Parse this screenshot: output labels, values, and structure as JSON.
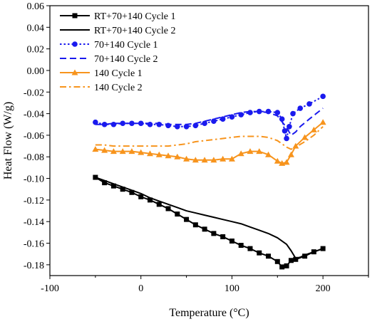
{
  "chart_data": {
    "type": "line",
    "title": "",
    "xlabel": "Temperature (°C)",
    "ylabel": "Heat Flow (W/g)",
    "xlim": [
      -100,
      250
    ],
    "ylim": [
      -0.19,
      0.06
    ],
    "xticks": [
      -100,
      0,
      100,
      200
    ],
    "yticks": [
      -0.18,
      -0.16,
      -0.14,
      -0.12,
      -0.1,
      -0.08,
      -0.06,
      -0.04,
      -0.02,
      0.0,
      0.02,
      0.04,
      0.06
    ],
    "ytick_labels": [
      "-0.18",
      "-0.16",
      "-0.14",
      "-0.12",
      "-0.10",
      "-0.08",
      "-0.06",
      "-0.04",
      "-0.02",
      "0.00",
      "0.02",
      "0.04",
      "0.06"
    ],
    "grid": false,
    "legend_position": "top-left",
    "series": [
      {
        "name": "RT+70+140 Cycle 1",
        "color": "#000000",
        "dash": "solid",
        "marker": "square",
        "x": [
          -50,
          -40,
          -30,
          -20,
          -10,
          0,
          10,
          20,
          30,
          40,
          50,
          60,
          70,
          80,
          90,
          100,
          110,
          120,
          130,
          140,
          150,
          155,
          160,
          165,
          170,
          180,
          190,
          200
        ],
        "y": [
          -0.099,
          -0.104,
          -0.107,
          -0.11,
          -0.113,
          -0.117,
          -0.12,
          -0.124,
          -0.128,
          -0.133,
          -0.138,
          -0.143,
          -0.147,
          -0.151,
          -0.154,
          -0.158,
          -0.162,
          -0.165,
          -0.169,
          -0.172,
          -0.177,
          -0.182,
          -0.181,
          -0.176,
          -0.175,
          -0.172,
          -0.168,
          -0.165
        ]
      },
      {
        "name": "RT+70+140 Cycle 2",
        "color": "#000000",
        "dash": "solid",
        "marker": "none",
        "x": [
          -50,
          -40,
          -30,
          -20,
          -10,
          0,
          10,
          20,
          30,
          40,
          50,
          60,
          70,
          80,
          90,
          100,
          110,
          120,
          130,
          140,
          150,
          160,
          165,
          170,
          175,
          180,
          190,
          200
        ],
        "y": [
          -0.099,
          -0.102,
          -0.105,
          -0.108,
          -0.111,
          -0.114,
          -0.118,
          -0.121,
          -0.124,
          -0.127,
          -0.13,
          -0.132,
          -0.134,
          -0.136,
          -0.138,
          -0.14,
          -0.142,
          -0.145,
          -0.148,
          -0.151,
          -0.155,
          -0.161,
          -0.167,
          -0.174,
          -0.173,
          -0.171,
          -0.168,
          -0.165
        ]
      },
      {
        "name": "70+140 Cycle 1",
        "color": "#1a1aee",
        "dash": "dotted",
        "marker": "circle",
        "x": [
          -50,
          -40,
          -30,
          -20,
          -10,
          0,
          10,
          20,
          30,
          40,
          50,
          60,
          70,
          80,
          90,
          100,
          110,
          120,
          130,
          140,
          150,
          155,
          158,
          160,
          163,
          167,
          175,
          185,
          200
        ],
        "y": [
          -0.048,
          -0.05,
          -0.05,
          -0.049,
          -0.049,
          -0.049,
          -0.05,
          -0.05,
          -0.051,
          -0.052,
          -0.052,
          -0.051,
          -0.049,
          -0.047,
          -0.045,
          -0.043,
          -0.041,
          -0.039,
          -0.038,
          -0.038,
          -0.039,
          -0.045,
          -0.056,
          -0.063,
          -0.052,
          -0.04,
          -0.035,
          -0.031,
          -0.024
        ]
      },
      {
        "name": "70+140 Cycle 2",
        "color": "#1a1aee",
        "dash": "dashed",
        "marker": "none",
        "x": [
          -50,
          -40,
          -30,
          -20,
          -10,
          0,
          10,
          20,
          30,
          40,
          50,
          60,
          70,
          80,
          90,
          100,
          110,
          120,
          130,
          140,
          150,
          160,
          165,
          170,
          175,
          185,
          200
        ],
        "y": [
          -0.05,
          -0.05,
          -0.049,
          -0.049,
          -0.049,
          -0.049,
          -0.049,
          -0.049,
          -0.05,
          -0.05,
          -0.05,
          -0.049,
          -0.047,
          -0.045,
          -0.043,
          -0.041,
          -0.039,
          -0.038,
          -0.038,
          -0.039,
          -0.042,
          -0.053,
          -0.06,
          -0.057,
          -0.052,
          -0.045,
          -0.035
        ]
      },
      {
        "name": "140 Cycle 1",
        "color": "#f7941d",
        "dash": "solid",
        "marker": "triangle",
        "x": [
          -50,
          -40,
          -30,
          -20,
          -10,
          0,
          10,
          20,
          30,
          40,
          50,
          60,
          70,
          80,
          90,
          100,
          110,
          120,
          130,
          140,
          150,
          155,
          160,
          165,
          170,
          180,
          190,
          200
        ],
        "y": [
          -0.073,
          -0.074,
          -0.075,
          -0.075,
          -0.075,
          -0.076,
          -0.077,
          -0.078,
          -0.079,
          -0.08,
          -0.082,
          -0.083,
          -0.083,
          -0.083,
          -0.082,
          -0.082,
          -0.077,
          -0.075,
          -0.075,
          -0.078,
          -0.084,
          -0.086,
          -0.085,
          -0.078,
          -0.07,
          -0.062,
          -0.055,
          -0.048
        ]
      },
      {
        "name": "140 Cycle 2",
        "color": "#f7941d",
        "dash": "dashdot",
        "marker": "none",
        "x": [
          -50,
          -40,
          -30,
          -20,
          -10,
          0,
          10,
          20,
          30,
          40,
          50,
          60,
          70,
          80,
          90,
          100,
          110,
          120,
          130,
          140,
          150,
          160,
          165,
          170,
          180,
          190,
          200
        ],
        "y": [
          -0.069,
          -0.069,
          -0.07,
          -0.07,
          -0.07,
          -0.07,
          -0.07,
          -0.07,
          -0.07,
          -0.069,
          -0.068,
          -0.066,
          -0.065,
          -0.064,
          -0.063,
          -0.062,
          -0.061,
          -0.061,
          -0.061,
          -0.062,
          -0.065,
          -0.071,
          -0.073,
          -0.071,
          -0.066,
          -0.06,
          -0.052
        ]
      }
    ]
  }
}
